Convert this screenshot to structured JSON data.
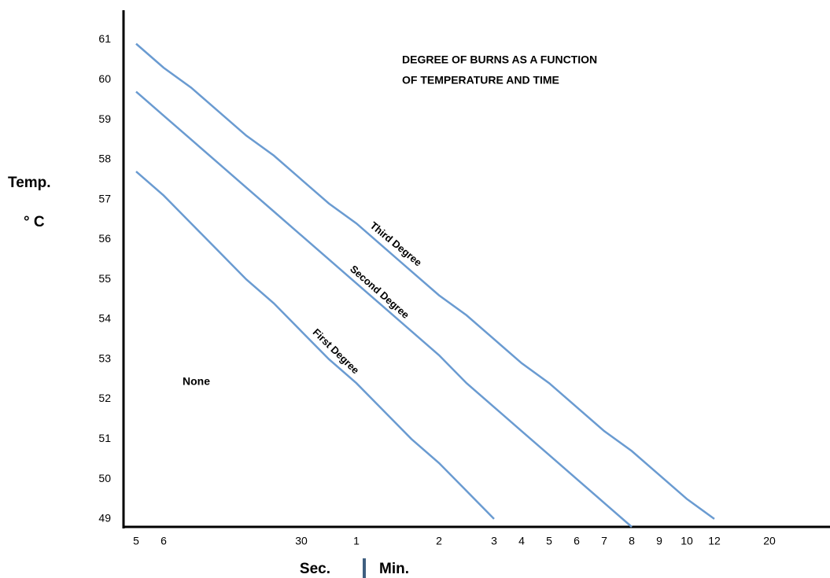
{
  "chart_data": {
    "type": "line",
    "title": [
      "DEGREE OF BURNS AS A FUNCTION",
      "OF TEMPERATURE AND TIME"
    ],
    "ylabel": [
      "Temp.",
      "° C"
    ],
    "xlabel": [
      "Sec.",
      "Min."
    ],
    "annotations": [
      "None"
    ],
    "categories": [
      "5",
      "6",
      null,
      null,
      null,
      null,
      "30",
      null,
      "1",
      null,
      null,
      "2",
      null,
      "3",
      "4",
      "5",
      "6",
      "7",
      "8",
      "9",
      "10",
      "12",
      null,
      "20"
    ],
    "ylim": [
      48.8,
      61.7
    ],
    "yticks": [
      49,
      50,
      51,
      52,
      53,
      54,
      55,
      56,
      57,
      58,
      59,
      60,
      61
    ],
    "grid": false,
    "series": [
      {
        "name": "First Degree",
        "color": "#6a9bd1",
        "values": [
          57.7,
          57.1,
          56.4,
          55.7,
          55.0,
          54.4,
          53.7,
          53.0,
          52.4,
          51.7,
          51.0,
          50.4,
          49.7,
          49.0,
          null,
          null,
          null,
          null,
          null,
          null,
          null,
          null,
          null,
          null
        ]
      },
      {
        "name": "Second Degree",
        "color": "#6a9bd1",
        "values": [
          59.7,
          59.1,
          58.5,
          57.9,
          57.3,
          56.7,
          56.1,
          55.5,
          54.9,
          54.3,
          53.7,
          53.1,
          52.4,
          51.8,
          51.2,
          50.6,
          50.0,
          49.4,
          48.8,
          null,
          null,
          null,
          null,
          null
        ]
      },
      {
        "name": "Third Degree",
        "color": "#6a9bd1",
        "values": [
          60.9,
          60.3,
          59.8,
          59.2,
          58.6,
          58.1,
          57.5,
          56.9,
          56.4,
          55.8,
          55.2,
          54.6,
          54.1,
          53.5,
          52.9,
          52.4,
          51.8,
          51.2,
          50.7,
          50.1,
          49.5,
          49.0,
          null,
          null
        ]
      }
    ]
  }
}
